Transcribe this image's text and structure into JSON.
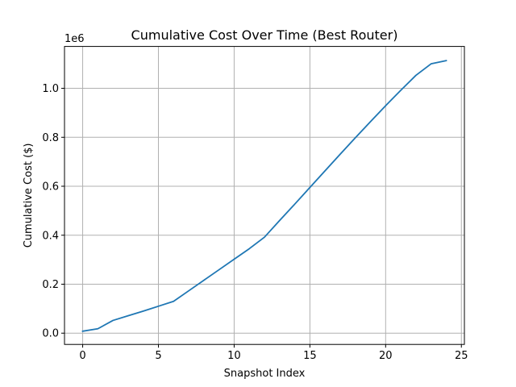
{
  "chart_data": {
    "type": "line",
    "title": "Cumulative Cost Over Time (Best Router)",
    "xlabel": "Snapshot Index",
    "ylabel": "Cumulative Cost ($)",
    "y_offset_label": "1e6",
    "xlim": [
      -1.2,
      25.2
    ],
    "ylim": [
      -0.046,
      1.171
    ],
    "x_ticks": [
      0,
      5,
      10,
      15,
      20,
      25
    ],
    "x_tick_labels": [
      "0",
      "5",
      "10",
      "15",
      "20",
      "25"
    ],
    "y_ticks": [
      0.0,
      0.2,
      0.4,
      0.6,
      0.8,
      1.0
    ],
    "y_tick_labels": [
      "0.0",
      "0.2",
      "0.4",
      "0.6",
      "0.8",
      "1.0"
    ],
    "grid": true,
    "series": [
      {
        "color": "#1f77b4",
        "x": [
          0,
          1,
          2,
          3,
          4,
          5,
          6,
          7,
          8,
          9,
          10,
          11,
          12,
          13,
          14,
          15,
          16,
          17,
          18,
          19,
          20,
          21,
          22,
          23,
          24
        ],
        "y": [
          0.008,
          0.018,
          0.052,
          0.071,
          0.09,
          0.11,
          0.13,
          0.173,
          0.216,
          0.259,
          0.302,
          0.345,
          0.392,
          0.46,
          0.527,
          0.595,
          0.663,
          0.731,
          0.798,
          0.864,
          0.929,
          0.992,
          1.053,
          1.1,
          1.113
        ]
      }
    ]
  }
}
